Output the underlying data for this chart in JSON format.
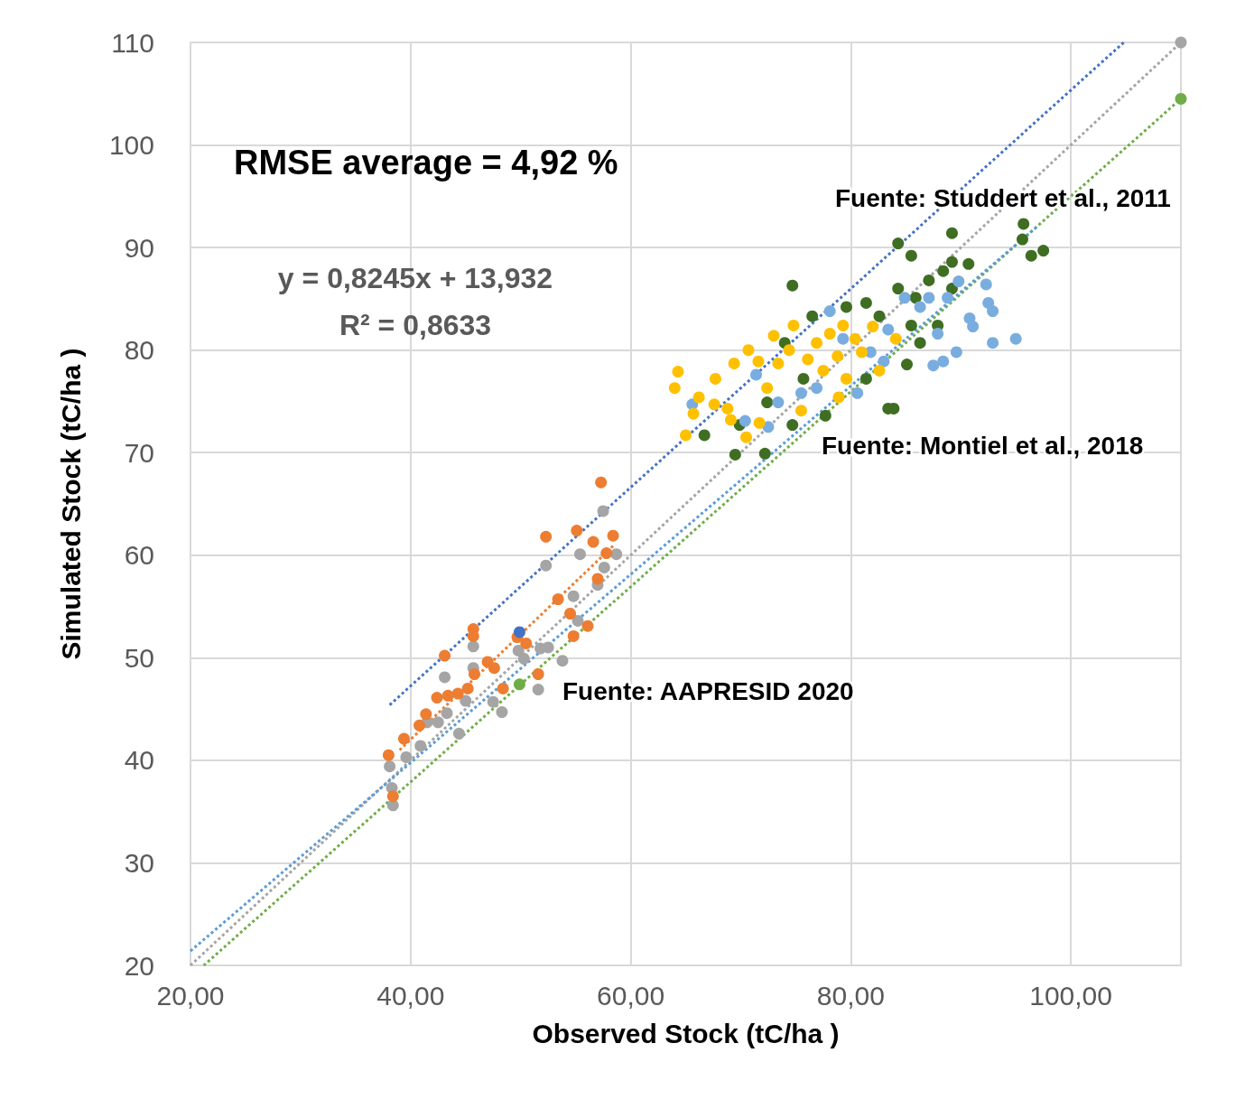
{
  "chart_data": {
    "type": "scatter",
    "xlabel": "Observed Stock (tC/ha )",
    "ylabel": "Simulated Stock (tC/ha )",
    "annotations": [
      "RMSE average = 4,92 %",
      "y = 0,8245x + 13,932",
      "R² = 0,8633",
      "Fuente: Studdert et al., 2011",
      "Fuente: Montiel et al., 2018",
      "Fuente: AAPRESID 2020"
    ],
    "xlim": [
      20,
      110
    ],
    "ylim": [
      20,
      110
    ],
    "xticks": [
      {
        "value": 20,
        "label": "20,00"
      },
      {
        "value": 40,
        "label": "40,00"
      },
      {
        "value": 60,
        "label": "60,00"
      },
      {
        "value": 80,
        "label": "80,00"
      },
      {
        "value": 100,
        "label": "100,00"
      }
    ],
    "yticks": [
      20,
      30,
      40,
      50,
      60,
      70,
      80,
      90,
      100,
      110
    ],
    "grid": true,
    "marker": "circle",
    "line_style": "dotted",
    "series": [
      {
        "type": "line",
        "color": "#a5a5a5",
        "marker": "none",
        "x": [
          20,
          110
        ],
        "values": [
          20,
          110
        ]
      },
      {
        "type": "line",
        "color": "#70ad47",
        "marker": "none",
        "x": [
          21.2,
          110
        ],
        "values": [
          20,
          104.5
        ]
      },
      {
        "type": "line",
        "color": "#4472c4",
        "marker": "none",
        "x": [
          38.1,
          104.8
        ],
        "values": [
          45.4,
          110
        ]
      },
      {
        "type": "line",
        "color": "#5b9bd5",
        "marker": "none",
        "x": [
          20,
          97.0
        ],
        "values": [
          21.4,
          92.1
        ]
      },
      {
        "type": "line",
        "color": "#ed7d31",
        "marker": "none",
        "x": [
          39,
          58.5
        ],
        "values": [
          41,
          61
        ]
      },
      {
        "color": "#a5a5a5",
        "x": [
          38.1,
          38.3,
          38.4,
          39.6,
          40.9,
          41.5,
          42.5,
          43.1,
          43.3,
          44.4,
          45.0,
          45.7,
          45.7,
          47.5,
          48.3,
          49.8,
          50.3,
          51.6,
          51.8,
          52.3,
          53.8,
          54.8,
          55.2,
          55.4,
          57.0,
          57.5,
          57.6,
          58.7,
          52.5,
          110
        ],
        "values": [
          39.4,
          37.3,
          35.6,
          40.3,
          41.4,
          43.7,
          43.7,
          48.1,
          44.6,
          42.6,
          45.8,
          51.1,
          49.0,
          45.7,
          44.7,
          50.7,
          49.9,
          46.9,
          50.9,
          59.0,
          49.7,
          56.0,
          53.6,
          60.1,
          57.1,
          64.3,
          58.8,
          60.1,
          51.0,
          110
        ]
      },
      {
        "color": "#ed7d31",
        "x": [
          38.0,
          39.4,
          40.8,
          41.4,
          42.4,
          43.1,
          43.4,
          44.3,
          45.2,
          45.7,
          45.7,
          45.8,
          47.0,
          47.6,
          48.4,
          49.7,
          50.5,
          51.6,
          52.3,
          53.4,
          54.5,
          54.8,
          55.1,
          56.1,
          56.6,
          57.0,
          57.3,
          58.4,
          57.8,
          38.4
        ],
        "values": [
          40.5,
          42.1,
          43.4,
          44.5,
          46.1,
          50.2,
          46.3,
          46.5,
          47.0,
          52.8,
          52.1,
          48.4,
          49.6,
          49.0,
          47.0,
          52.0,
          51.4,
          48.4,
          61.8,
          55.7,
          54.3,
          52.1,
          62.4,
          53.1,
          61.3,
          57.7,
          67.1,
          61.9,
          60.2,
          36.5
        ]
      },
      {
        "color": "#4472c4",
        "x": [
          49.9
        ],
        "values": [
          52.5
        ]
      },
      {
        "color": "#70ad47",
        "x": [
          49.9,
          110
        ],
        "values": [
          47.4,
          104.5
        ]
      },
      {
        "color": "#3f6e23",
        "x": [
          74.7,
          84.3,
          85.5,
          89.2,
          89.2,
          89.2,
          90.7,
          95.7,
          96.4,
          97.5,
          95.6,
          83.4,
          83.9,
          72.2,
          69.5,
          66.7,
          69.9,
          72.4,
          74.7,
          76.5,
          77.7,
          79.6,
          81.4,
          82.6,
          84.3,
          85.9,
          86.3,
          85.1,
          87.9,
          74.0,
          75.7,
          81.4,
          88.4,
          85.5,
          87.1
        ],
        "values": [
          86.3,
          90.4,
          89.2,
          91.4,
          88.6,
          86.0,
          88.4,
          92.3,
          89.2,
          89.7,
          90.8,
          74.3,
          74.3,
          69.9,
          69.8,
          71.7,
          72.7,
          74.9,
          72.7,
          83.3,
          73.6,
          84.2,
          84.6,
          83.3,
          86.0,
          85.1,
          80.7,
          78.6,
          82.4,
          80.7,
          77.2,
          77.2,
          87.7,
          82.4,
          86.8
        ]
      },
      {
        "color": "#7aaddf",
        "x": [
          65.6,
          70.4,
          71.4,
          72.5,
          73.4,
          75.5,
          76.9,
          78.1,
          80.6,
          81.8,
          83.4,
          84.9,
          86.3,
          87.9,
          88.8,
          89.8,
          90.8,
          91.1,
          92.3,
          92.5,
          92.9,
          95.0,
          92.9,
          88.4,
          87.5,
          89.6,
          83.0,
          79.3,
          87.1
        ],
        "values": [
          74.7,
          73.1,
          77.6,
          72.5,
          74.9,
          75.8,
          76.3,
          83.8,
          75.8,
          79.8,
          82.0,
          85.1,
          84.2,
          81.6,
          85.1,
          86.7,
          83.1,
          82.3,
          86.4,
          84.6,
          80.7,
          81.1,
          83.8,
          78.9,
          78.5,
          79.8,
          78.9,
          81.1,
          85.1
        ]
      },
      {
        "color": "#ffc000",
        "x": [
          64.3,
          64.0,
          65.7,
          65.0,
          67.7,
          67.6,
          68.8,
          69.1,
          69.4,
          70.5,
          70.7,
          71.6,
          72.4,
          73.0,
          73.4,
          74.4,
          74.8,
          75.5,
          76.1,
          76.9,
          77.5,
          78.1,
          78.8,
          79.3,
          79.6,
          80.4,
          81.0,
          82.0,
          82.6,
          84.1,
          78.9,
          71.7,
          66.2
        ],
        "values": [
          77.9,
          76.3,
          73.8,
          71.7,
          77.2,
          74.7,
          74.3,
          73.2,
          78.7,
          71.5,
          80.0,
          78.9,
          76.3,
          81.4,
          78.7,
          80.0,
          82.4,
          74.1,
          79.1,
          80.7,
          78.0,
          81.6,
          79.4,
          82.4,
          77.2,
          81.1,
          79.8,
          82.3,
          78.0,
          81.1,
          75.4,
          72.9,
          75.4
        ]
      }
    ]
  }
}
